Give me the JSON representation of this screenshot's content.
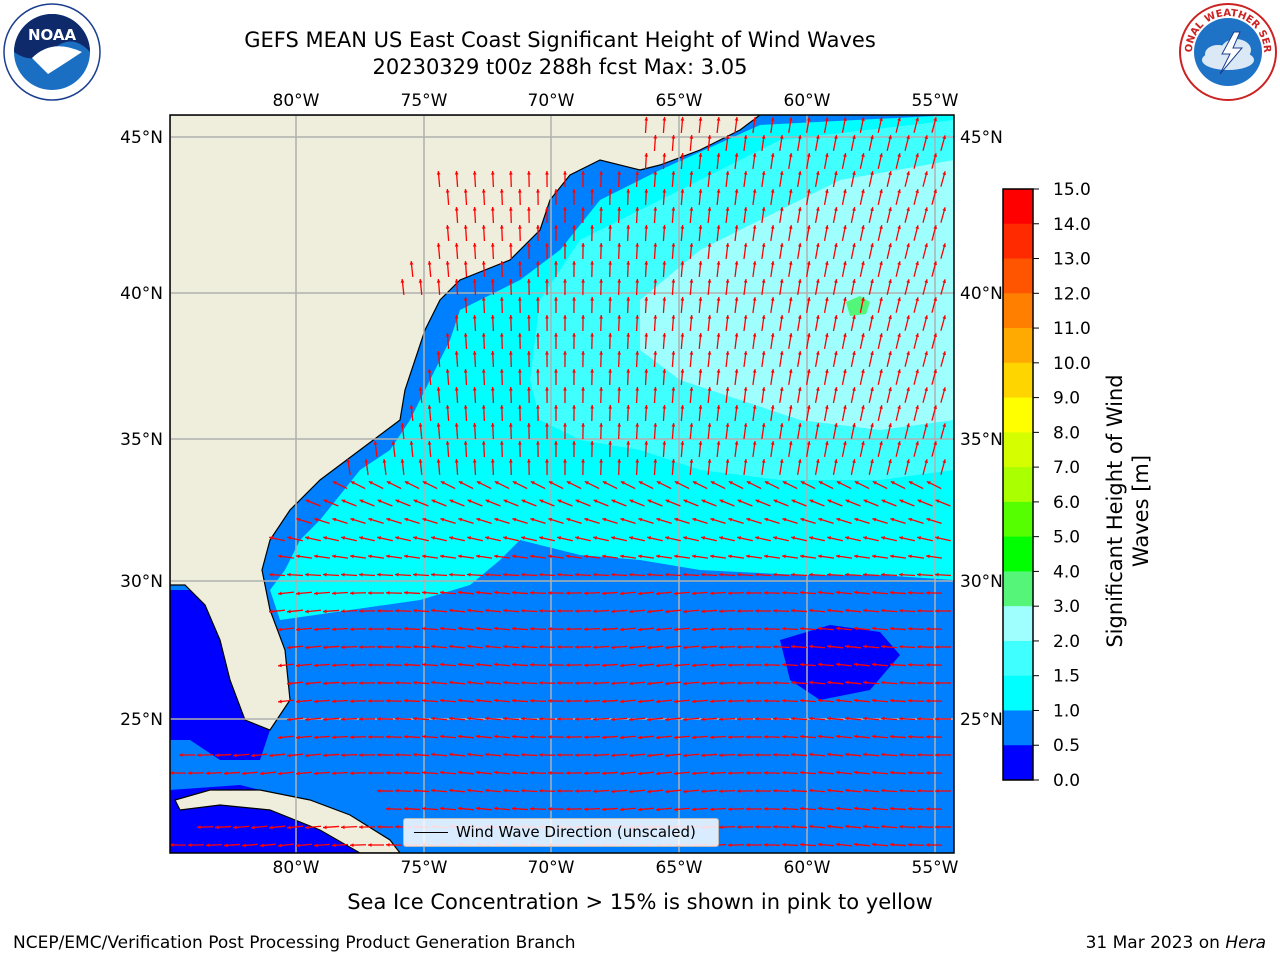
{
  "header": {
    "title_line1": "GEFS MEAN US East Coast Significant Height of Wind Waves",
    "title_line2": "20230329 t00z 288h fcst   Max: 3.05"
  },
  "logos": {
    "left": {
      "name": "noaa-logo",
      "text": "NOAA",
      "ring_text": "NATIONAL OCEANIC AND ATMOSPHERIC ADMINISTRATION · U.S. DEPARTMENT OF COMMERCE"
    },
    "right": {
      "name": "nws-logo",
      "ring_text": "NATIONAL WEATHER SERVICE"
    }
  },
  "map": {
    "lon_ticks": [
      "80°W",
      "75°W",
      "70°W",
      "65°W",
      "60°W",
      "55°W"
    ],
    "lat_ticks": [
      "45°N",
      "40°N",
      "35°N",
      "30°N",
      "25°N"
    ],
    "legend_label": "Wind Wave Direction (unscaled)",
    "colors": {
      "land": "#efeedd",
      "band_0_0.5": "#0000ff",
      "band_0.5_1.0": "#0080ff",
      "band_1.0_1.5": "#00ffff",
      "band_1.5_2.0": "#40ffff",
      "band_2.0_3.0": "#9fffff",
      "band_3.0_4.0": "#52f77a",
      "arrow": "#ff0000",
      "grid": "#b0b0b0"
    }
  },
  "colorbar": {
    "title": "Significant Height of Wind Waves [m]",
    "ticks": [
      "15.0",
      "14.0",
      "13.0",
      "12.0",
      "11.0",
      "10.0",
      "9.0",
      "8.0",
      "7.0",
      "6.0",
      "5.0",
      "4.0",
      "3.0",
      "2.0",
      "1.5",
      "1.0",
      "0.5",
      "0.0"
    ],
    "colors": [
      "#ff0000",
      "#ff2a00",
      "#ff5500",
      "#ff8000",
      "#ffaa00",
      "#ffd500",
      "#ffff00",
      "#d5ff00",
      "#aaff00",
      "#55ff00",
      "#00ff00",
      "#55f57a",
      "#9fffff",
      "#40ffff",
      "#00ffff",
      "#0080ff",
      "#0000ff"
    ]
  },
  "footer": {
    "subtitle": "Sea Ice Concentration > 15% is shown in pink to yellow",
    "left": "NCEP/EMC/Verification Post Processing Product Generation Branch",
    "right_prefix": "31 Mar 2023 on ",
    "right_host": "Hera"
  }
}
